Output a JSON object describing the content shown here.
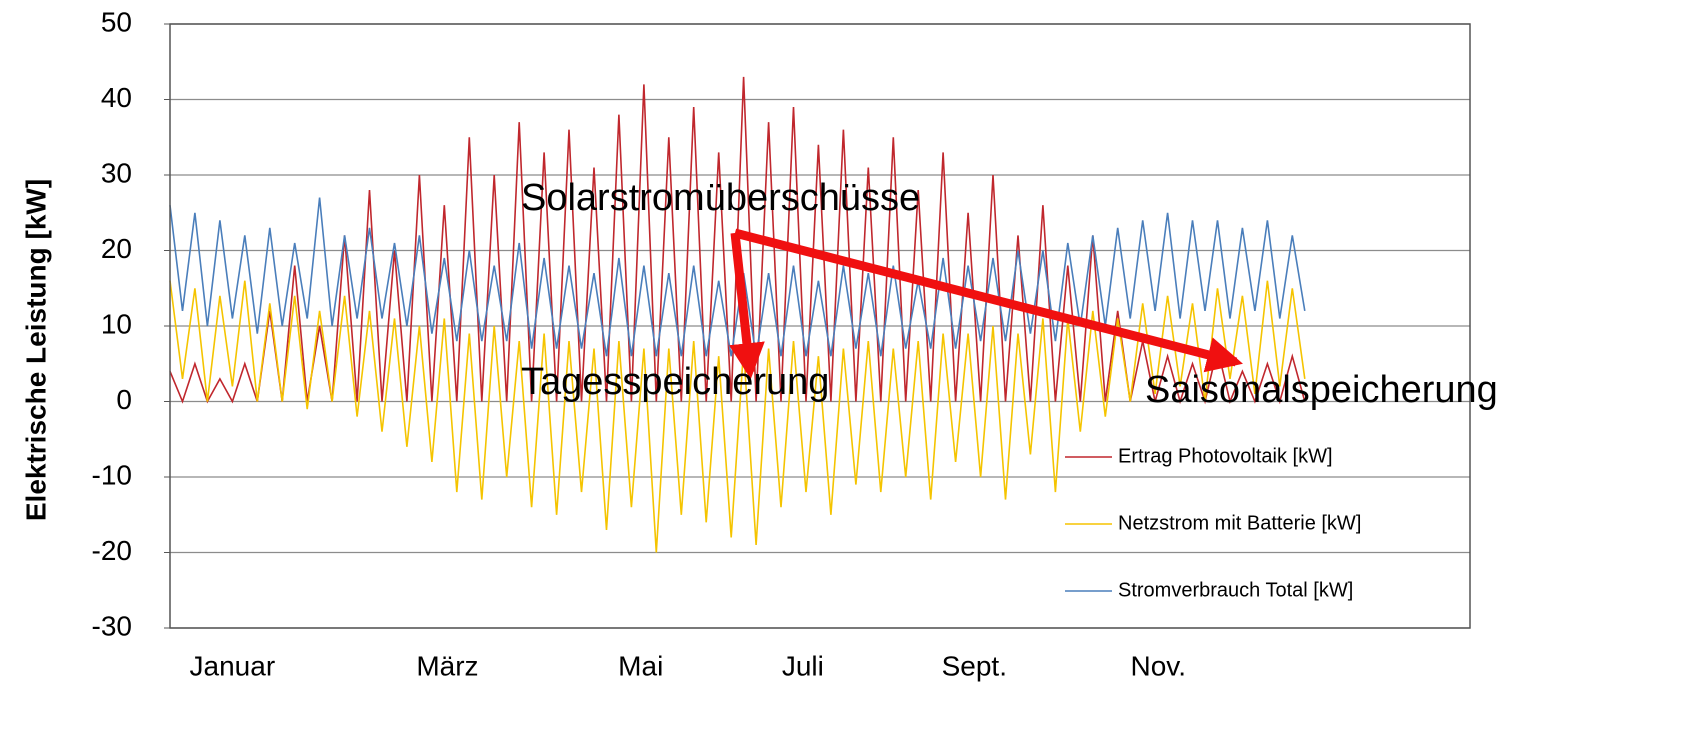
{
  "chart_data": {
    "type": "line",
    "y_label": "Elektrische Leistung [kW]",
    "annotations": [
      "Solarstromüberschüsse",
      "Tagesspeicherung",
      "Saisonalspeicherung"
    ],
    "xlim": [
      0,
      417
    ],
    "xticks": [
      {
        "value": 20,
        "label": "Januar"
      },
      {
        "value": 89,
        "label": "März"
      },
      {
        "value": 151,
        "label": "Mai"
      },
      {
        "value": 203,
        "label": "Juli"
      },
      {
        "value": 258,
        "label": "Sept."
      },
      {
        "value": 317,
        "label": "Nov."
      }
    ],
    "ylim": [
      -30,
      50
    ],
    "yticks": [
      -30,
      -20,
      -10,
      0,
      10,
      20,
      30,
      40,
      50
    ],
    "grid": true,
    "legend": "lower right",
    "x": [
      0,
      4,
      8,
      12,
      16,
      20,
      24,
      28,
      32,
      36,
      40,
      44,
      48,
      52,
      56,
      60,
      64,
      68,
      72,
      76,
      80,
      84,
      88,
      92,
      96,
      100,
      104,
      108,
      112,
      116,
      120,
      124,
      128,
      132,
      136,
      140,
      144,
      148,
      152,
      156,
      160,
      164,
      168,
      172,
      176,
      180,
      184,
      188,
      192,
      196,
      200,
      204,
      208,
      212,
      216,
      220,
      224,
      228,
      232,
      236,
      240,
      244,
      248,
      252,
      256,
      260,
      264,
      268,
      272,
      276,
      280,
      284,
      288,
      292,
      296,
      300,
      304,
      308,
      312,
      316,
      320,
      324,
      328,
      332,
      336,
      340,
      344,
      348,
      352,
      356,
      360,
      364
    ],
    "series": [
      {
        "name": "Ertrag Photovoltaik [kW]",
        "color": "#c0272d",
        "values": [
          4,
          0,
          5,
          0,
          3,
          0,
          5,
          0,
          12,
          0,
          18,
          0,
          10,
          0,
          22,
          0,
          28,
          0,
          20,
          0,
          30,
          0,
          26,
          0,
          35,
          0,
          30,
          0,
          37,
          0,
          33,
          0,
          36,
          0,
          31,
          0,
          38,
          0,
          42,
          0,
          35,
          0,
          39,
          0,
          33,
          0,
          43,
          0,
          37,
          0,
          39,
          0,
          34,
          0,
          36,
          0,
          31,
          0,
          35,
          0,
          28,
          0,
          33,
          0,
          25,
          0,
          30,
          0,
          22,
          0,
          26,
          0,
          18,
          0,
          22,
          0,
          12,
          0,
          8,
          0,
          6,
          0,
          5,
          0,
          7,
          0,
          4,
          0,
          5,
          0,
          6,
          0
        ]
      },
      {
        "name": "Netzstrom mit Batterie [kW]",
        "color": "#f5c400",
        "values": [
          16,
          3,
          15,
          0,
          14,
          2,
          16,
          0,
          13,
          0,
          14,
          -1,
          12,
          0,
          14,
          -2,
          12,
          -4,
          11,
          -6,
          10,
          -8,
          11,
          -12,
          9,
          -13,
          10,
          -10,
          8,
          -14,
          9,
          -15,
          8,
          -12,
          7,
          -17,
          8,
          -14,
          7,
          -20,
          7,
          -15,
          8,
          -16,
          6,
          -18,
          7,
          -19,
          7,
          -14,
          8,
          -12,
          6,
          -15,
          7,
          -11,
          8,
          -12,
          7,
          -10,
          8,
          -13,
          9,
          -8,
          9,
          -10,
          10,
          -13,
          9,
          -7,
          11,
          -12,
          11,
          -4,
          12,
          -2,
          11,
          0,
          13,
          1,
          14,
          2,
          13,
          0,
          15,
          3,
          14,
          1,
          16,
          2,
          15,
          3
        ]
      },
      {
        "name": "Stromverbrauch Total [kW]",
        "color": "#4a7ebb",
        "values": [
          26,
          12,
          25,
          10,
          24,
          11,
          22,
          9,
          23,
          10,
          21,
          11,
          27,
          10,
          22,
          11,
          23,
          11,
          21,
          10,
          22,
          9,
          19,
          8,
          20,
          8,
          18,
          8,
          21,
          7,
          19,
          7,
          18,
          7,
          17,
          6,
          19,
          6,
          18,
          6,
          17,
          6,
          18,
          6,
          16,
          6,
          17,
          6,
          17,
          6,
          18,
          6,
          16,
          6,
          18,
          7,
          17,
          6,
          18,
          7,
          16,
          7,
          19,
          7,
          18,
          8,
          19,
          8,
          20,
          9,
          20,
          8,
          21,
          10,
          22,
          10,
          23,
          11,
          24,
          12,
          25,
          11,
          24,
          12,
          24,
          11,
          23,
          12,
          24,
          11,
          22,
          12
        ]
      }
    ]
  }
}
